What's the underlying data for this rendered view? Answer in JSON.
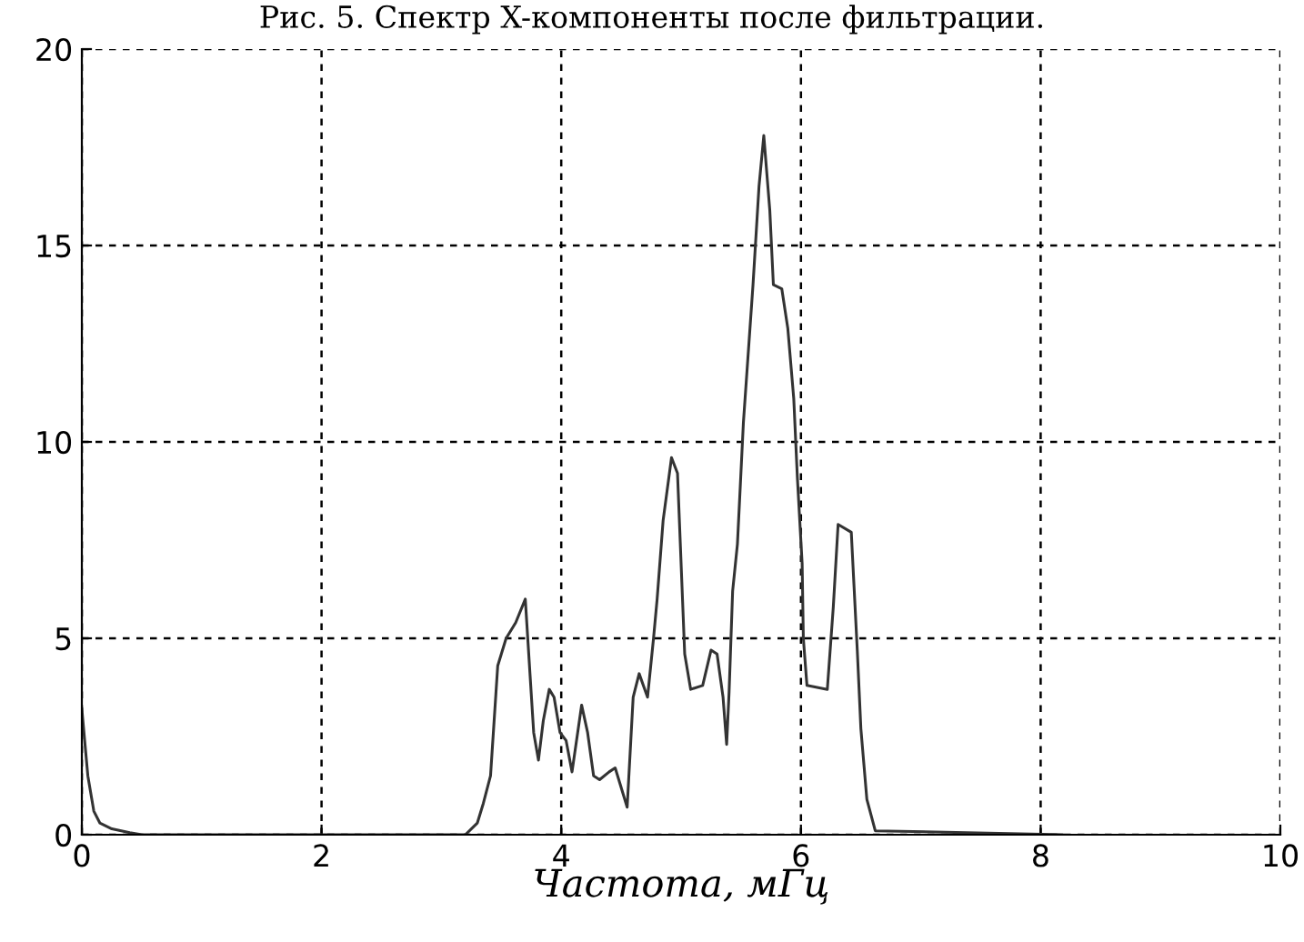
{
  "chart_data": {
    "type": "line",
    "title": "Рис. 5. Спектр X-компоненты после фильтрации.",
    "xlabel": "Частота, мГц",
    "x": [
      0,
      0.05,
      0.1,
      0.15,
      0.25,
      0.4,
      0.5,
      3.2,
      3.3,
      3.35,
      3.41,
      3.47,
      3.54,
      3.62,
      3.7,
      3.77,
      3.81,
      3.85,
      3.9,
      3.94,
      3.99,
      4.04,
      4.09,
      4.17,
      4.22,
      4.27,
      4.32,
      4.4,
      4.45,
      4.55,
      4.6,
      4.65,
      4.72,
      4.77,
      4.8,
      4.85,
      4.92,
      4.97,
      5.03,
      5.08,
      5.18,
      5.25,
      5.3,
      5.35,
      5.38,
      5.4,
      5.43,
      5.47,
      5.52,
      5.6,
      5.65,
      5.69,
      5.74,
      5.77,
      5.84,
      5.89,
      5.94,
      5.97,
      6.01,
      6.02,
      6.05,
      6.22,
      6.27,
      6.31,
      6.42,
      6.47,
      6.5,
      6.55,
      6.62,
      8.18
    ],
    "series": [
      {
        "color": "#333333",
        "values": [
          3.2,
          1.5,
          0.6,
          0.3,
          0.15,
          0.05,
          0,
          0,
          0.3,
          0.8,
          1.5,
          4.3,
          5.0,
          5.4,
          6.0,
          2.6,
          1.9,
          2.9,
          3.7,
          3.5,
          2.6,
          2.4,
          1.6,
          3.3,
          2.6,
          1.5,
          1.4,
          1.6,
          1.7,
          0.7,
          3.5,
          4.1,
          3.5,
          5.0,
          6.0,
          8.0,
          9.6,
          9.2,
          4.6,
          3.7,
          3.8,
          4.7,
          4.6,
          3.5,
          2.3,
          3.6,
          6.2,
          7.4,
          10.5,
          14.0,
          16.5,
          17.8,
          15.9,
          14.0,
          13.9,
          12.9,
          11.1,
          9.1,
          6.9,
          5.0,
          3.8,
          3.7,
          5.8,
          7.9,
          7.7,
          4.7,
          2.7,
          0.9,
          0.1,
          0
        ]
      }
    ],
    "xlim": [
      0,
      10
    ],
    "ylim": [
      0,
      20
    ],
    "xticks": [
      0,
      2,
      4,
      6,
      8,
      10
    ],
    "yticks": [
      0,
      5,
      10,
      15,
      20
    ],
    "grid": true,
    "line_style": "solid",
    "marker": "none"
  }
}
